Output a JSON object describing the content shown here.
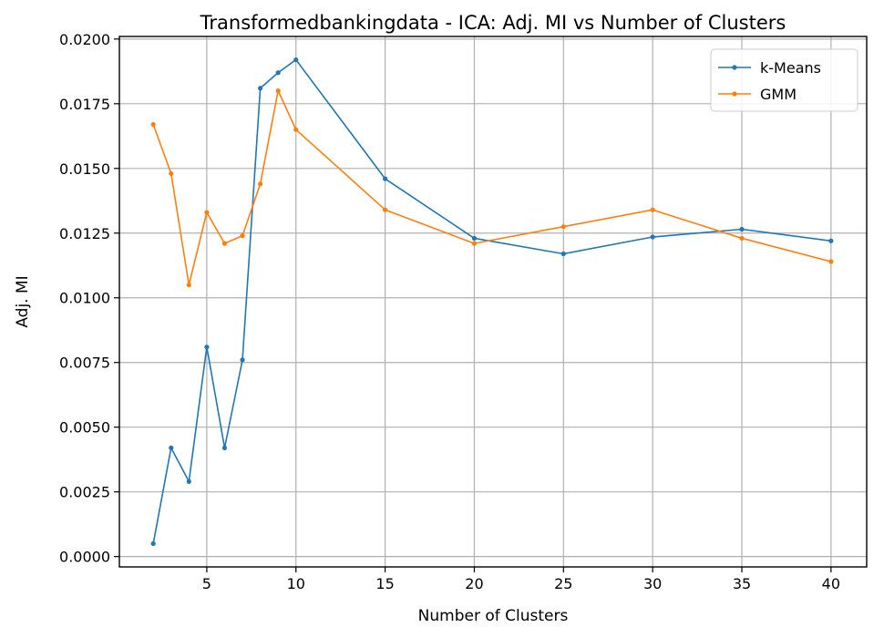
{
  "chart_data": {
    "type": "line",
    "title": "Transformedbankingdata - ICA: Adj. MI vs Number of Clusters",
    "xlabel": "Number of Clusters",
    "ylabel": "Adj. MI",
    "xlim": [
      0.1,
      42.0
    ],
    "ylim": [
      -0.0004,
      0.0201
    ],
    "xticks": [
      5,
      10,
      15,
      20,
      25,
      30,
      35,
      40
    ],
    "xtick_labels": [
      "5",
      "10",
      "15",
      "20",
      "25",
      "30",
      "35",
      "40"
    ],
    "yticks": [
      0.0,
      0.0025,
      0.005,
      0.0075,
      0.01,
      0.0125,
      0.015,
      0.0175,
      0.02
    ],
    "ytick_labels": [
      "0.0000",
      "0.0025",
      "0.0050",
      "0.0075",
      "0.0100",
      "0.0125",
      "0.0150",
      "0.0175",
      "0.0200"
    ],
    "grid": true,
    "legend": "top-right",
    "x": [
      2,
      3,
      4,
      5,
      6,
      7,
      8,
      9,
      10,
      15,
      20,
      25,
      30,
      35,
      40
    ],
    "series": [
      {
        "name": "k-Means",
        "color": "#1f77b4",
        "values": [
          0.0005,
          0.0042,
          0.0029,
          0.0081,
          0.0042,
          0.0076,
          0.0181,
          0.0187,
          0.0192,
          0.0146,
          0.0123,
          0.0117,
          0.01235,
          0.01265,
          0.0122
        ]
      },
      {
        "name": "GMM",
        "color": "#ff7f0e",
        "values": [
          0.0167,
          0.0148,
          0.0105,
          0.0133,
          0.0121,
          0.0124,
          0.0144,
          0.018,
          0.0165,
          0.0134,
          0.0121,
          0.01275,
          0.0134,
          0.0123,
          0.0114
        ]
      }
    ]
  }
}
